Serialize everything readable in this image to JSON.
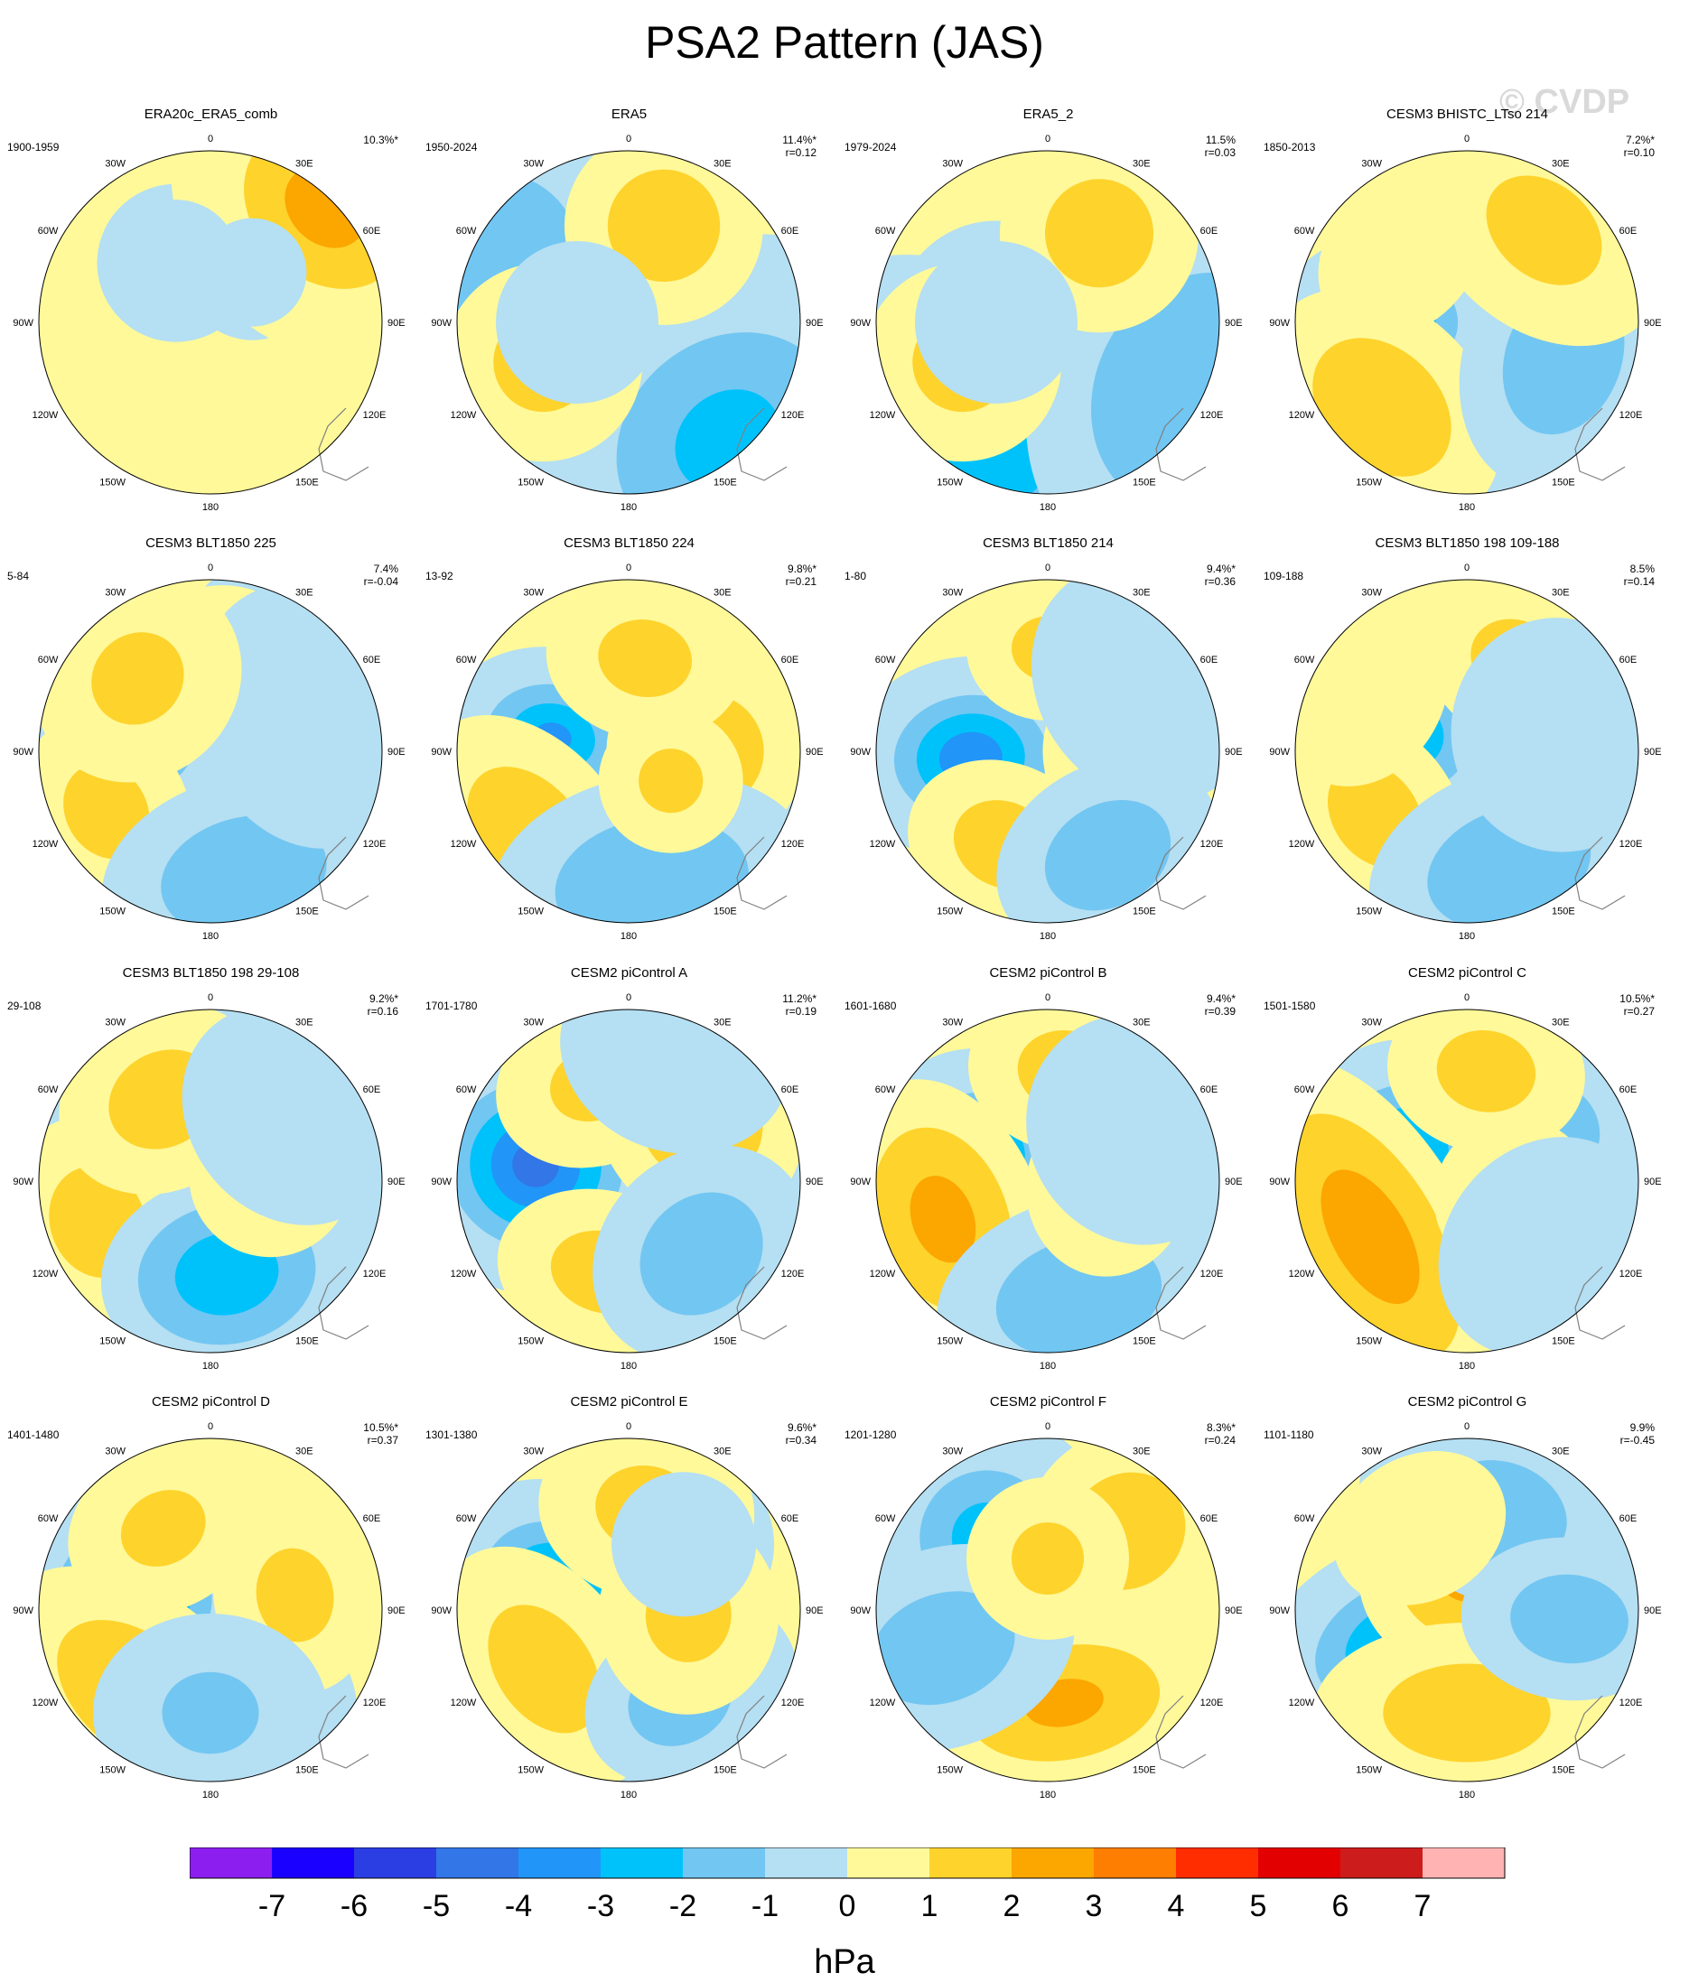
{
  "title": "PSA2 Pattern (JAS)",
  "watermark": "© CVDP",
  "longitude_labels": [
    "0",
    "30E",
    "60E",
    "90E",
    "120E",
    "150E",
    "180",
    "150W",
    "120W",
    "90W",
    "60W",
    "30W"
  ],
  "panels": [
    {
      "title": "ERA20c_ERA5_comb",
      "period": "1900-1959",
      "pct": "10.3%*",
      "r": "",
      "blobs": [
        [
          2.6,
          45,
          1.5,
          230,
          260
        ],
        [
          2.4,
          45,
          0.95,
          150,
          120
        ],
        [
          -0.6,
          330,
          0.4,
          70,
          70
        ],
        [
          -0.5,
          40,
          0.38,
          60,
          60
        ]
      ]
    },
    {
      "title": "ERA5",
      "period": "1950-2024",
      "pct": "11.4%*",
      "r": "r=0.12",
      "blobs": [
        [
          2.6,
          170,
          0.35,
          95,
          95
        ],
        [
          -2.3,
          140,
          0.9,
          200,
          170
        ],
        [
          -2.0,
          290,
          0.85,
          180,
          160
        ],
        [
          1.7,
          20,
          0.6,
          110,
          110
        ],
        [
          1.4,
          245,
          0.55,
          110,
          110
        ],
        [
          -0.9,
          270,
          0.3,
          90,
          90
        ]
      ]
    },
    {
      "title": "ERA5_2",
      "period": "1979-2024",
      "pct": "11.5%",
      "r": "r=0.03",
      "blobs": [
        [
          2.7,
          175,
          0.33,
          100,
          100
        ],
        [
          -2.2,
          205,
          0.85,
          240,
          160
        ],
        [
          -2.0,
          115,
          0.95,
          220,
          180
        ],
        [
          1.6,
          30,
          0.6,
          110,
          110
        ],
        [
          1.4,
          245,
          0.55,
          110,
          110
        ],
        [
          -1.0,
          270,
          0.3,
          90,
          90
        ]
      ]
    },
    {
      "title": "CESM3 BHISTC_LTso 214",
      "period": "1850-2013",
      "pct": "7.2%*",
      "r": "r=0.10",
      "blobs": [
        [
          -3.5,
          270,
          0.45,
          80,
          100
        ],
        [
          1.8,
          225,
          0.7,
          150,
          110
        ],
        [
          -1.8,
          110,
          0.6,
          150,
          110
        ],
        [
          1.3,
          40,
          0.7,
          150,
          110
        ],
        [
          1.0,
          315,
          0.55,
          100,
          80
        ]
      ]
    },
    {
      "title": "CESM3 BLT1850 225",
      "period": "5-84",
      "pct": "7.4%",
      "r": "r=-0.04",
      "blobs": [
        [
          -2.8,
          280,
          0.45,
          85,
          95
        ],
        [
          1.4,
          240,
          0.7,
          110,
          90
        ],
        [
          -1.8,
          165,
          0.75,
          160,
          110
        ],
        [
          1.3,
          10,
          0.5,
          100,
          90
        ],
        [
          -1.0,
          70,
          0.6,
          150,
          120
        ],
        [
          1.2,
          315,
          0.6,
          120,
          110
        ]
      ]
    },
    {
      "title": "CESM3 BLT1850 224",
      "period": "13-92",
      "pct": "9.8%*",
      "r": "r=0.21",
      "blobs": [
        [
          -3.2,
          280,
          0.45,
          80,
          100
        ],
        [
          1.8,
          90,
          0.45,
          110,
          110
        ],
        [
          1.7,
          230,
          0.75,
          150,
          100
        ],
        [
          -1.9,
          170,
          0.78,
          180,
          120
        ],
        [
          1.3,
          10,
          0.55,
          110,
          90
        ],
        [
          1.2,
          125,
          0.3,
          80,
          80
        ]
      ]
    },
    {
      "title": "CESM3 BLT1850 214",
      "period": "1-80",
      "pct": "9.4%*",
      "r": "r=0.36",
      "blobs": [
        [
          -3.8,
          265,
          0.45,
          90,
          110
        ],
        [
          1.6,
          90,
          0.55,
          110,
          110
        ],
        [
          1.5,
          205,
          0.6,
          110,
          90
        ],
        [
          -1.7,
          150,
          0.7,
          130,
          100
        ],
        [
          1.2,
          0,
          0.6,
          90,
          80
        ],
        [
          -1.0,
          55,
          0.7,
          140,
          120
        ]
      ]
    },
    {
      "title": "CESM3 BLT1850 198 109-188",
      "period": "109-188",
      "pct": "8.5%",
      "r": "r=0.14",
      "blobs": [
        [
          -3.2,
          285,
          0.42,
          90,
          110
        ],
        [
          1.5,
          235,
          0.65,
          120,
          90
        ],
        [
          -1.8,
          160,
          0.72,
          160,
          110
        ],
        [
          1.4,
          30,
          0.6,
          110,
          90
        ],
        [
          -1.0,
          80,
          0.55,
          130,
          120
        ],
        [
          1.0,
          300,
          0.7,
          110,
          90
        ]
      ]
    },
    {
      "title": "CESM3 BLT1850 198 29-108",
      "period": "29-108",
      "pct": "9.2%*",
      "r": "r=0.16",
      "blobs": [
        [
          -1.2,
          270,
          0.35,
          110,
          120
        ],
        [
          1.5,
          250,
          0.7,
          120,
          100
        ],
        [
          -2.8,
          170,
          0.55,
          140,
          110
        ],
        [
          1.5,
          330,
          0.55,
          120,
          100
        ],
        [
          1.3,
          85,
          0.35,
          90,
          90
        ],
        [
          -1.0,
          50,
          0.6,
          130,
          110
        ]
      ]
    },
    {
      "title": "CESM2 piControl A",
      "period": "1701-1780",
      "pct": "11.2%*",
      "r": "r=0.19",
      "blobs": [
        [
          -4.5,
          280,
          0.55,
          115,
          120
        ],
        [
          1.9,
          50,
          0.55,
          120,
          110
        ],
        [
          1.4,
          195,
          0.55,
          120,
          90
        ],
        [
          -1.7,
          135,
          0.6,
          130,
          110
        ],
        [
          1.2,
          340,
          0.6,
          110,
          90
        ],
        [
          -1.0,
          20,
          0.8,
          130,
          110
        ]
      ]
    },
    {
      "title": "CESM2 piControl B",
      "period": "1601-1680",
      "pct": "9.4%*",
      "r": "r=0.39",
      "blobs": [
        [
          -3.0,
          295,
          0.4,
          90,
          100
        ],
        [
          2.3,
          250,
          0.65,
          160,
          110
        ],
        [
          -1.8,
          165,
          0.7,
          160,
          110
        ],
        [
          1.4,
          10,
          0.65,
          110,
          90
        ],
        [
          1.3,
          95,
          0.35,
          100,
          90
        ],
        [
          -1.0,
          60,
          0.6,
          130,
          120
        ]
      ]
    },
    {
      "title": "CESM2 piControl C",
      "period": "1501-1580",
      "pct": "10.5%*",
      "r": "r=0.27",
      "blobs": [
        [
          -3.3,
          295,
          0.4,
          100,
          100
        ],
        [
          2.6,
          240,
          0.65,
          220,
          110
        ],
        [
          -1.5,
          60,
          0.6,
          100,
          90
        ],
        [
          1.4,
          10,
          0.65,
          110,
          90
        ],
        [
          1.3,
          110,
          0.3,
          90,
          90
        ],
        [
          -1.0,
          130,
          0.6,
          130,
          110
        ]
      ]
    },
    {
      "title": "CESM2 piControl D",
      "period": "1401-1480",
      "pct": "10.5%*",
      "r": "r=0.37",
      "blobs": [
        [
          -4.0,
          280,
          0.45,
          100,
          110
        ],
        [
          1.8,
          220,
          0.65,
          180,
          110
        ],
        [
          1.3,
          80,
          0.5,
          110,
          90
        ],
        [
          -1.1,
          180,
          0.6,
          130,
          110
        ],
        [
          1.2,
          330,
          0.55,
          110,
          90
        ]
      ]
    },
    {
      "title": "CESM2 piControl E",
      "period": "1301-1380",
      "pct": "9.6%*",
      "r": "r=0.34",
      "blobs": [
        [
          -3.3,
          290,
          0.45,
          90,
          110
        ],
        [
          1.5,
          235,
          0.6,
          150,
          100
        ],
        [
          -1.6,
          150,
          0.6,
          110,
          90
        ],
        [
          1.3,
          10,
          0.6,
          120,
          100
        ],
        [
          1.3,
          95,
          0.35,
          110,
          100
        ],
        [
          -1.0,
          40,
          0.5,
          80,
          80
        ]
      ]
    },
    {
      "title": "CESM2 piControl F",
      "period": "1201-1280",
      "pct": "8.3%*",
      "r": "r=0.24",
      "blobs": [
        [
          -2.5,
          320,
          0.55,
          110,
          110
        ],
        [
          2.1,
          170,
          0.55,
          170,
          100
        ],
        [
          1.7,
          45,
          0.65,
          110,
          120
        ],
        [
          -1.6,
          250,
          0.65,
          110,
          150
        ],
        [
          1.2,
          0,
          0.3,
          90,
          90
        ]
      ]
    },
    {
      "title": "CESM2 piControl G",
      "period": "1101-1180",
      "pct": "9.9%",
      "r": "r=-0.45",
      "blobs": [
        [
          -3.1,
          245,
          0.45,
          90,
          130
        ],
        [
          2.1,
          0,
          0.2,
          120,
          110
        ],
        [
          1.6,
          180,
          0.6,
          170,
          100
        ],
        [
          -1.7,
          20,
          0.6,
          130,
          100
        ],
        [
          -1.6,
          95,
          0.6,
          90,
          120
        ],
        [
          1.0,
          330,
          0.55,
          100,
          80
        ]
      ]
    }
  ],
  "colorbar": {
    "ticks": [
      "-7",
      "-6",
      "-5",
      "-4",
      "-3",
      "-2",
      "-1",
      "0",
      "1",
      "2",
      "3",
      "4",
      "5",
      "6",
      "7"
    ],
    "colors": [
      "#8c1ff0",
      "#1a00ff",
      "#2b3ee3",
      "#3276e8",
      "#2195f8",
      "#00c2fb",
      "#72c6f2",
      "#b5dff2",
      "#fff99a",
      "#fed32c",
      "#fca600",
      "#fd7e00",
      "#ff2d00",
      "#e30000",
      "#cc1c1c",
      "#ffb3b3"
    ],
    "unit": "hPa"
  },
  "map_colors": {
    "edge": "#000000",
    "coast": "#808080"
  }
}
